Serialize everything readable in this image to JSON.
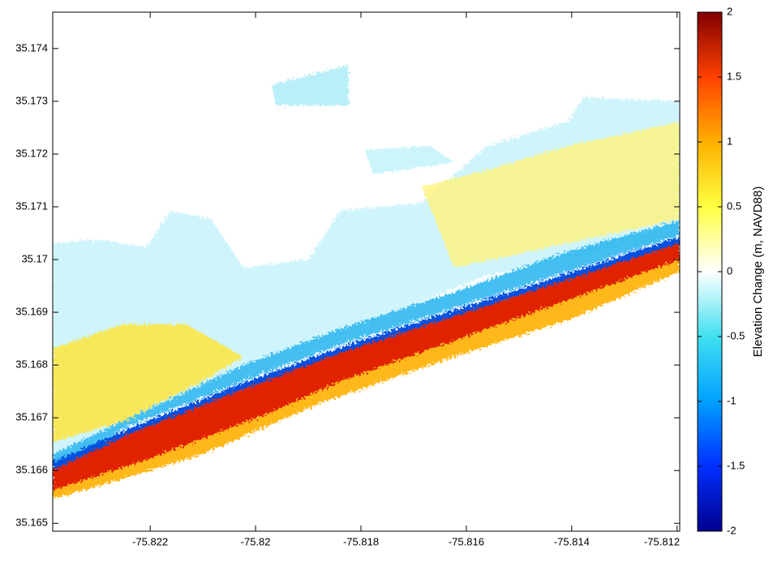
{
  "chart_data": {
    "type": "heatmap",
    "xlim": [
      -75.82385,
      -75.81195
    ],
    "xticks": [
      -75.822,
      -75.82,
      -75.818,
      -75.816,
      -75.814,
      -75.812
    ],
    "ylim": [
      35.16485,
      35.17469
    ],
    "yticks": [
      35.165,
      35.166,
      35.167,
      35.168,
      35.169,
      35.17,
      35.171,
      35.172,
      35.173,
      35.174
    ],
    "colorbar": {
      "label": "Elevation Change (m, NAVD88)",
      "lim": [
        -2,
        2
      ],
      "ticks": [
        -2,
        -1.5,
        -1,
        -0.5,
        0,
        0.5,
        1,
        1.5,
        2
      ],
      "colormap": [
        "#00008f",
        "#0030ff",
        "#00a0ff",
        "#40e0f0",
        "#ffffff",
        "#ffff40",
        "#ffb000",
        "#ff4000",
        "#800000"
      ]
    }
  }
}
